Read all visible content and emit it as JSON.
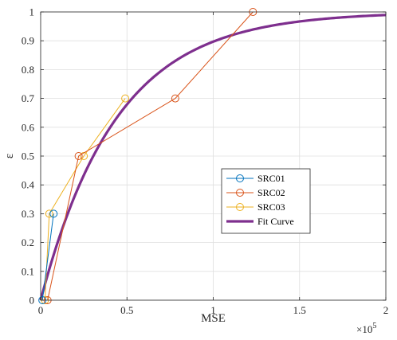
{
  "chart_data": {
    "type": "line",
    "title": "",
    "xlabel": "MSE",
    "ylabel": "ε",
    "x_exponent_label": "×10",
    "x_exponent_power": "5",
    "xlim": [
      0,
      200000
    ],
    "ylim": [
      0,
      1
    ],
    "x_ticks": [
      0,
      50000,
      100000,
      150000,
      200000
    ],
    "x_tick_labels": [
      "0",
      "0.5",
      "1",
      "1.5",
      "2"
    ],
    "y_ticks": [
      0,
      0.1,
      0.2,
      0.3,
      0.4,
      0.5,
      0.6,
      0.7,
      0.8,
      0.9,
      1
    ],
    "y_tick_labels": [
      "0",
      "0.1",
      "0.2",
      "0.3",
      "0.4",
      "0.5",
      "0.6",
      "0.7",
      "0.8",
      "0.9",
      "1"
    ],
    "grid": true,
    "legend_position": "center-right",
    "series": [
      {
        "name": "SRC01",
        "color": "#0072BD",
        "marker": "circle",
        "x": [
          1000,
          7500
        ],
        "y": [
          0,
          0.3
        ]
      },
      {
        "name": "SRC02",
        "color": "#D95319",
        "marker": "circle",
        "x": [
          4000,
          22000,
          78000,
          123000
        ],
        "y": [
          0,
          0.5,
          0.7,
          1
        ]
      },
      {
        "name": "SRC03",
        "color": "#EDB120",
        "marker": "circle",
        "x": [
          2500,
          5000,
          25000,
          49000
        ],
        "y": [
          0,
          0.3,
          0.5,
          0.7
        ]
      },
      {
        "name": "Fit Curve",
        "color": "#7E2F8E",
        "marker": "none",
        "fit": "1 - exp(-x / 44000)",
        "tau": 44000
      }
    ]
  }
}
